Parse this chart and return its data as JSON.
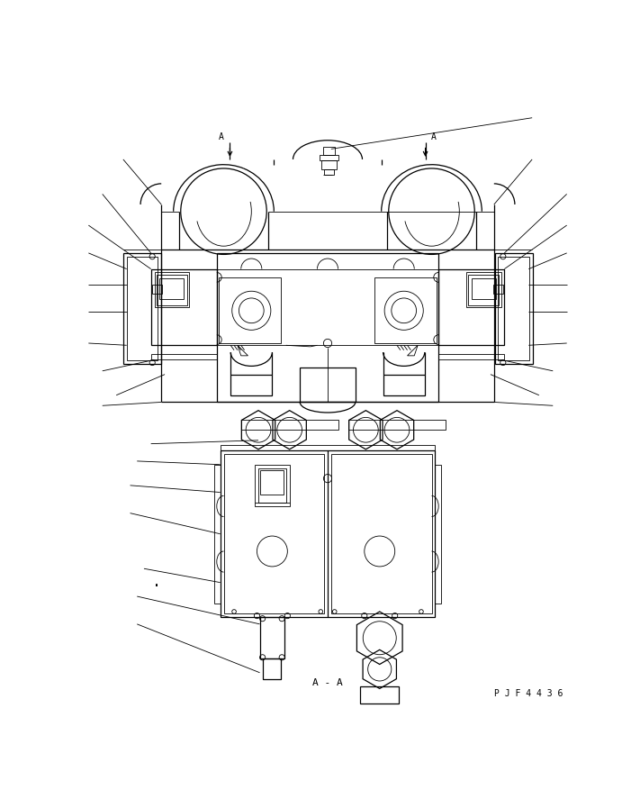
{
  "bg_color": "#ffffff",
  "line_color": "#000000",
  "lw_thin": 0.6,
  "lw_med": 0.9,
  "lw_thick": 1.1,
  "label_A_A": "A - A",
  "label_PJF": "P J F 4 4 3 6",
  "fig_width": 7.11,
  "fig_height": 8.97
}
